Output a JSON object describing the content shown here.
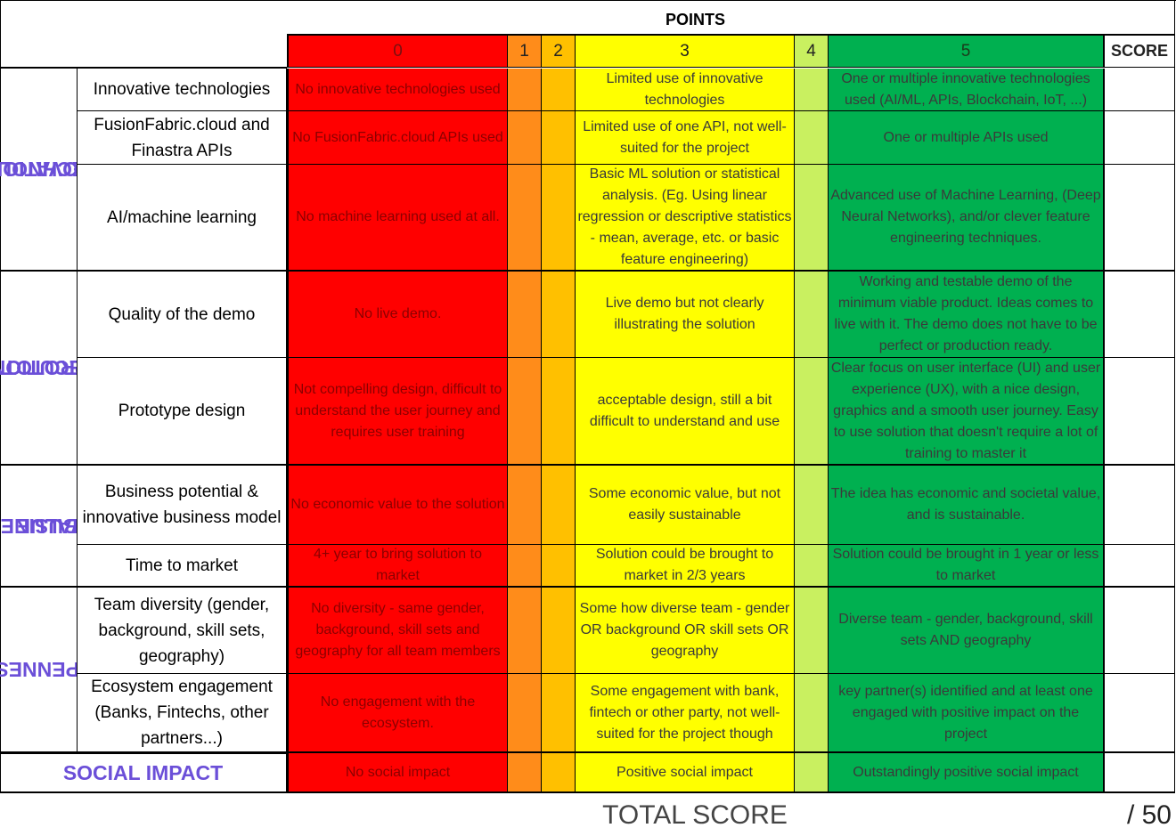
{
  "header": {
    "points_label": "POINTS",
    "score_label": "SCORE",
    "levels": [
      "0",
      "1",
      "2",
      "3",
      "4",
      "5"
    ]
  },
  "categories": [
    {
      "name": "TECHNOLOGY INNOVATION",
      "line1": "TECHNOLOGY",
      "line2": "INNOVATION"
    },
    {
      "name": "PROTOTYPE EXECUTION",
      "line1": "PROTOTYPE",
      "line2": "EXECUTION"
    },
    {
      "name": "BUSINESS VALUE",
      "line1": "BUSINESS",
      "line2": "VALUE"
    },
    {
      "name": "OPENNESS",
      "line1": "OPENNESS",
      "line2": ""
    }
  ],
  "rows": [
    {
      "criterion": "Innovative technologies",
      "p0": "No innovative technologies used",
      "p3": "Limited use of innovative technologies",
      "p5": "One or multiple innovative technologies used (AI/ML, APIs, Blockchain, IoT, ...)"
    },
    {
      "criterion": "FusionFabric.cloud and Finastra APIs",
      "p0": "No FusionFabric.cloud APIs used",
      "p3": "Limited use of one API, not well-suited for the project",
      "p5": "One or multiple APIs used"
    },
    {
      "criterion": "AI/machine learning",
      "p0": "No machine learning used at all.",
      "p3": "Basic ML solution or statistical analysis. (Eg. Using linear regression or descriptive statistics - mean, average, etc. or basic feature engineering)",
      "p5": "Advanced use of Machine Learning, (Deep Neural Networks), and/or clever feature engineering techniques."
    },
    {
      "criterion": "Quality of the demo",
      "p0": "No live demo.",
      "p3": "Live demo but not clearly illustrating the solution",
      "p5": "Working and testable demo of the minimum viable product. Ideas comes to live with it. The demo does not have to be perfect or production ready."
    },
    {
      "criterion": "Prototype design",
      "p0": "Not compelling design, difficult to understand the user journey and requires user training",
      "p3": "acceptable design, still a bit difficult to understand and use",
      "p5": "Clear focus on user interface (UI) and user experience (UX), with a nice design, graphics and a smooth user journey. Easy to use solution that doesn't require a lot of training to master it"
    },
    {
      "criterion": "Business potential & innovative business model",
      "p0": "No economic value to the solution",
      "p3": "Some economic value, but not easily sustainable",
      "p5": "The idea has economic and societal value, and is sustainable."
    },
    {
      "criterion": "Time to market",
      "p0": "4+ year to bring solution to market",
      "p3": "Solution could be brought to market in 2/3 years",
      "p5": "Solution could be brought in 1 year or less to market"
    },
    {
      "criterion": "Team diversity (gender, background, skill sets, geography)",
      "p0": "No diversity - same gender, background, skill sets and geography for all team members",
      "p3": "Some how diverse team - gender OR background OR skill sets OR geography",
      "p5": "Diverse team - gender, background, skill sets AND geography"
    },
    {
      "criterion": "Ecosystem engagement (Banks, Fintechs, other partners...)",
      "p0": "No engagement with the ecosystem.",
      "p3": "Some engagement with bank, fintech or other party, not well-suited for the project though",
      "p5": "key partner(s) identified and at least one engaged with positive impact on the project"
    }
  ],
  "social": {
    "label": "SOCIAL IMPACT",
    "p0": "No social impact",
    "p3": "Positive social impact",
    "p5": "Outstandingly positive social impact"
  },
  "footer": {
    "total_label": "TOTAL SCORE",
    "max_label": "/ 50"
  },
  "colors": {
    "p0": "#ff0000",
    "p1": "#ff8c1a",
    "p2": "#ffc000",
    "p3": "#ffff00",
    "p4": "#c9f060",
    "p5": "#00b050",
    "category_text": "#6b4fd8"
  }
}
